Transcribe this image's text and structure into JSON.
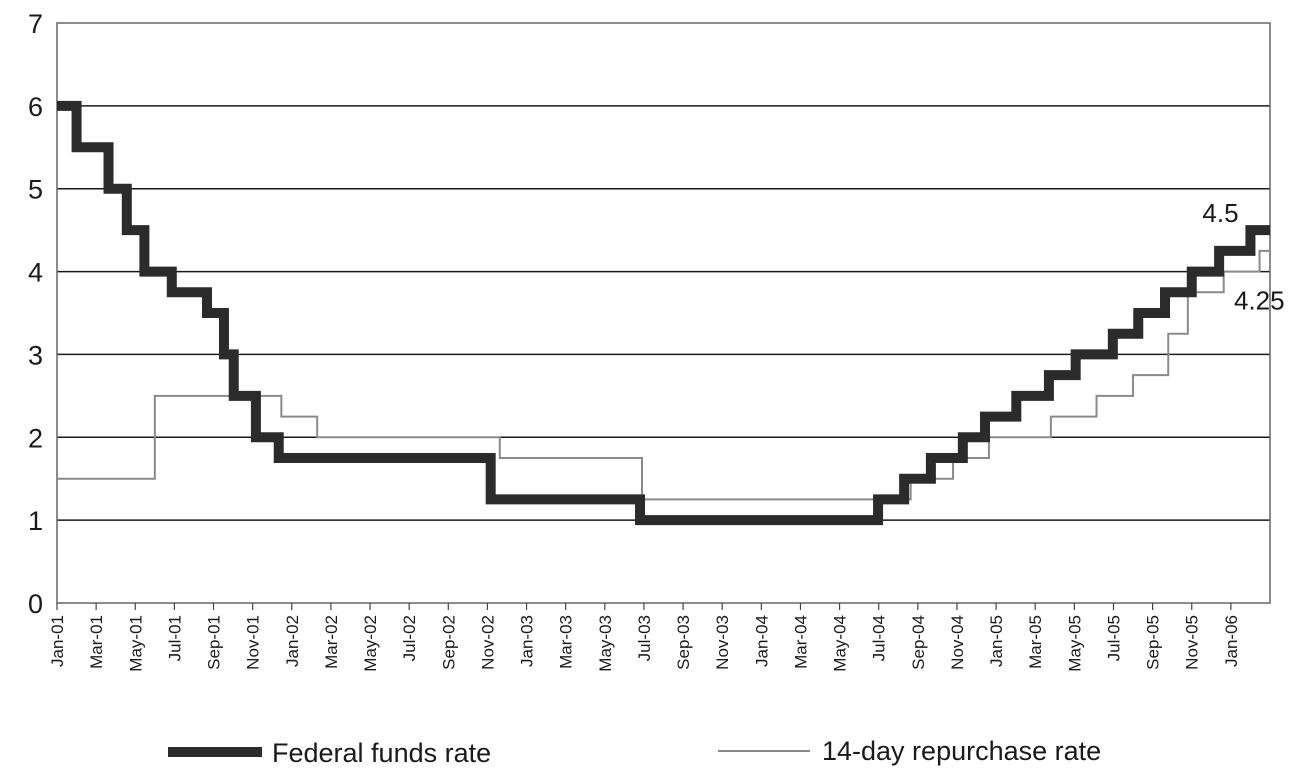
{
  "chart_data": {
    "type": "line",
    "title": "",
    "xlabel": "",
    "ylabel": "",
    "ylim": [
      0,
      7
    ],
    "yticks": [
      "0",
      "1",
      "2",
      "3",
      "4",
      "5",
      "6",
      "7"
    ],
    "xlim": [
      "2001-01",
      "2006-03"
    ],
    "xticks": [
      "Jan-01",
      "Mar-01",
      "May-01",
      "Jul-01",
      "Sep-01",
      "Nov-01",
      "Jan-02",
      "Mar-02",
      "May-02",
      "Jul-02",
      "Sep-02",
      "Nov-02",
      "Jan-03",
      "Mar-03",
      "May-03",
      "Jul-03",
      "Sep-03",
      "Nov-03",
      "Jan-04",
      "Mar-04",
      "May-04",
      "Jul-04",
      "Sep-04",
      "Nov-04",
      "Jan-05",
      "Mar-05",
      "May-05",
      "Jul-05",
      "Sep-05",
      "Nov-05",
      "Jan-06"
    ],
    "grid": true,
    "legend_position": "bottom",
    "series": [
      {
        "name": "Federal funds rate",
        "step": true,
        "points": [
          [
            "2001-01",
            6.0
          ],
          [
            "2001-01-31",
            5.5
          ],
          [
            "2001-03-20",
            5.0
          ],
          [
            "2001-04-18",
            4.5
          ],
          [
            "2001-05-15",
            4.0
          ],
          [
            "2001-06-27",
            3.75
          ],
          [
            "2001-08-21",
            3.5
          ],
          [
            "2001-09-17",
            3.0
          ],
          [
            "2001-10-02",
            2.5
          ],
          [
            "2001-11-06",
            2.0
          ],
          [
            "2001-12-11",
            1.75
          ],
          [
            "2002-11-06",
            1.25
          ],
          [
            "2003-06-25",
            1.0
          ],
          [
            "2004-06-30",
            1.25
          ],
          [
            "2004-08-10",
            1.5
          ],
          [
            "2004-09-21",
            1.75
          ],
          [
            "2004-11-10",
            2.0
          ],
          [
            "2004-12-14",
            2.25
          ],
          [
            "2005-02-02",
            2.5
          ],
          [
            "2005-03-22",
            2.75
          ],
          [
            "2005-05-03",
            3.0
          ],
          [
            "2005-06-30",
            3.25
          ],
          [
            "2005-08-09",
            3.5
          ],
          [
            "2005-09-20",
            3.75
          ],
          [
            "2005-11-01",
            4.0
          ],
          [
            "2005-12-13",
            4.25
          ],
          [
            "2006-01-31",
            4.5
          ],
          [
            "2006-03",
            4.5
          ]
        ]
      },
      {
        "name": "14-day repurchase rate",
        "step": true,
        "points": [
          [
            "2001-01",
            1.5
          ],
          [
            "2001-06",
            2.5
          ],
          [
            "2001-12-15",
            2.25
          ],
          [
            "2002-02-10",
            2.0
          ],
          [
            "2002-11-20",
            1.75
          ],
          [
            "2003-06-28",
            1.25
          ],
          [
            "2004-07-01",
            1.25
          ],
          [
            "2004-08-20",
            1.5
          ],
          [
            "2004-10-25",
            1.75
          ],
          [
            "2004-12-20",
            2.0
          ],
          [
            "2005-03-25",
            2.25
          ],
          [
            "2005-06-05",
            2.5
          ],
          [
            "2005-08-01",
            2.75
          ],
          [
            "2005-09-25",
            3.25
          ],
          [
            "2005-10-25",
            3.75
          ],
          [
            "2005-12-20",
            4.0
          ],
          [
            "2006-02-15",
            4.25
          ],
          [
            "2006-03",
            4.25
          ]
        ]
      }
    ],
    "annotations": [
      {
        "text": "4.5",
        "x": "2006-02",
        "y": 4.5
      },
      {
        "text": "4.25",
        "x": "2006-03",
        "y": 4.0
      }
    ]
  }
}
